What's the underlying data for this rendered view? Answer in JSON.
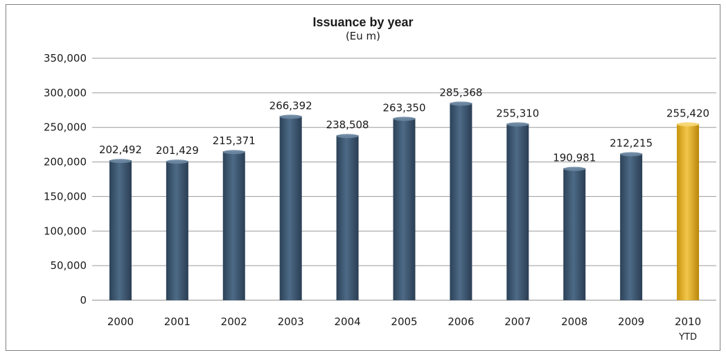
{
  "chart_data": {
    "type": "bar",
    "title": "Issuance by year",
    "subtitle": "(Eu m)",
    "categories": [
      "2000",
      "2001",
      "2002",
      "2003",
      "2004",
      "2005",
      "2006",
      "2007",
      "2008",
      "2009",
      "2010\nYTD"
    ],
    "values": [
      202492,
      201429,
      215371,
      266392,
      238508,
      263350,
      285368,
      255310,
      190981,
      212215,
      255420
    ],
    "value_labels": [
      "202,492",
      "201,429",
      "215,371",
      "266,392",
      "238,508",
      "263,350",
      "285,368",
      "255,310",
      "190,981",
      "212,215",
      "255,420"
    ],
    "ylim": [
      0,
      350000
    ],
    "yticks": [
      0,
      50000,
      100000,
      150000,
      200000,
      250000,
      300000,
      350000
    ],
    "ytick_labels": [
      "0",
      "50,000",
      "100,000",
      "150,000",
      "200,000",
      "250,000",
      "300,000",
      "350,000"
    ],
    "grid": true,
    "legend": "none",
    "bar_color": "#3e5a75",
    "highlight_color": "#e6b422",
    "highlight_index": 10
  }
}
